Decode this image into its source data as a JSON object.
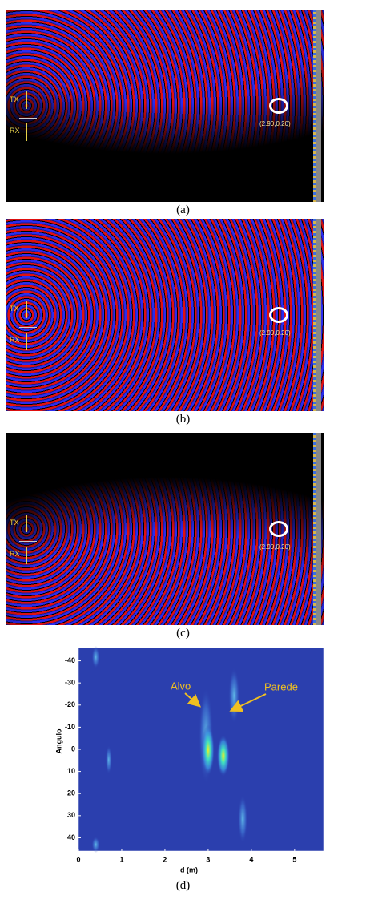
{
  "panels": [
    {
      "tx": "TX",
      "rx": "RX",
      "target_label": "(2.90,0.20)",
      "caption": "(a)"
    },
    {
      "tx": "TX",
      "rx": "RX",
      "target_label": "(2.90,0.20)",
      "caption": "(b)"
    },
    {
      "tx": "TX",
      "rx": "RX",
      "target_label": "(2.90,0.20)",
      "caption": "(c)"
    }
  ],
  "heatmap": {
    "x_label": "d (m)",
    "y_label": "Angulo",
    "xlim": [
      0,
      5.67
    ],
    "xticks": [
      0,
      1,
      2,
      3,
      4,
      5
    ],
    "ylim": [
      -46,
      46
    ],
    "yticks": [
      -40,
      -30,
      -20,
      -10,
      0,
      10,
      20,
      30,
      40
    ],
    "y_inverted": true,
    "annotations": [
      "Alvo",
      "Parede"
    ],
    "caption": "(d)"
  }
}
